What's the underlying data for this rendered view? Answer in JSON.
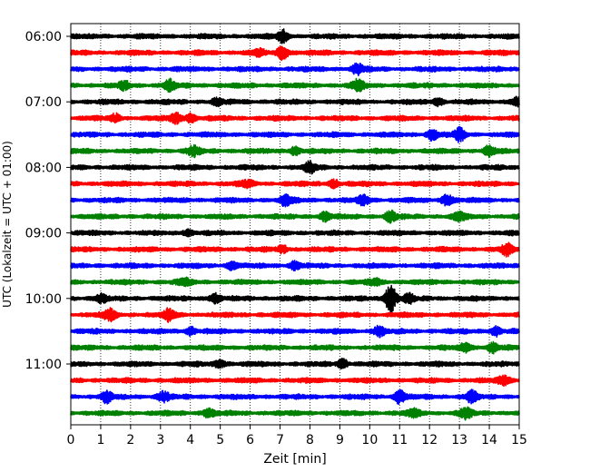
{
  "chart_data": {
    "type": "line",
    "title": "",
    "xlabel": "Zeit  [min]",
    "ylabel": "UTC (Lokalzeit = UTC + 01:00)",
    "xlim": [
      0,
      15
    ],
    "x_ticks": [
      "0",
      "1",
      "2",
      "3",
      "4",
      "5",
      "6",
      "7",
      "8",
      "9",
      "10",
      "11",
      "12",
      "13",
      "14",
      "15"
    ],
    "y_ticks": [
      {
        "label": "06:00",
        "row": 0
      },
      {
        "label": "07:00",
        "row": 4
      },
      {
        "label": "08:00",
        "row": 8
      },
      {
        "label": "09:00",
        "row": 12
      },
      {
        "label": "10:00",
        "row": 16
      },
      {
        "label": "11:00",
        "row": 20
      }
    ],
    "grid": "vertical dotted",
    "colors": [
      "#000000",
      "#ff0000",
      "#0000ff",
      "#008000"
    ],
    "rows": [
      {
        "start": "06:00",
        "color": "#000000",
        "events": [
          {
            "t": 7.1,
            "amp": 0.9
          }
        ]
      },
      {
        "start": "06:15",
        "color": "#ff0000",
        "events": [
          {
            "t": 7.1,
            "amp": 1.1
          },
          {
            "t": 6.3,
            "amp": 0.5
          }
        ]
      },
      {
        "start": "06:30",
        "color": "#0000ff",
        "events": [
          {
            "t": 9.6,
            "amp": 0.8
          }
        ]
      },
      {
        "start": "06:45",
        "color": "#008000",
        "events": [
          {
            "t": 1.8,
            "amp": 0.6
          },
          {
            "t": 3.3,
            "amp": 0.8
          },
          {
            "t": 9.6,
            "amp": 0.9
          }
        ]
      },
      {
        "start": "07:00",
        "color": "#000000",
        "events": [
          {
            "t": 4.9,
            "amp": 0.5
          },
          {
            "t": 12.3,
            "amp": 0.6
          },
          {
            "t": 14.9,
            "amp": 0.7
          }
        ]
      },
      {
        "start": "07:15",
        "color": "#ff0000",
        "events": [
          {
            "t": 1.5,
            "amp": 0.6
          },
          {
            "t": 3.5,
            "amp": 0.8
          },
          {
            "t": 4.0,
            "amp": 0.7
          }
        ]
      },
      {
        "start": "07:30",
        "color": "#0000ff",
        "events": [
          {
            "t": 12.1,
            "amp": 0.8
          },
          {
            "t": 13.0,
            "amp": 1.0
          }
        ]
      },
      {
        "start": "07:45",
        "color": "#008000",
        "events": [
          {
            "t": 4.1,
            "amp": 0.8
          },
          {
            "t": 7.5,
            "amp": 0.6
          },
          {
            "t": 14.0,
            "amp": 0.8
          }
        ]
      },
      {
        "start": "08:00",
        "color": "#000000",
        "events": [
          {
            "t": 8.0,
            "amp": 0.8
          }
        ]
      },
      {
        "start": "08:15",
        "color": "#ff0000",
        "events": [
          {
            "t": 5.9,
            "amp": 0.5
          },
          {
            "t": 8.8,
            "amp": 0.6
          }
        ]
      },
      {
        "start": "08:30",
        "color": "#0000ff",
        "events": [
          {
            "t": 7.2,
            "amp": 0.9
          },
          {
            "t": 9.8,
            "amp": 0.7
          },
          {
            "t": 12.6,
            "amp": 0.9
          }
        ]
      },
      {
        "start": "08:45",
        "color": "#008000",
        "events": [
          {
            "t": 8.5,
            "amp": 0.7
          },
          {
            "t": 10.7,
            "amp": 0.8
          },
          {
            "t": 13.0,
            "amp": 0.6
          }
        ]
      },
      {
        "start": "09:00",
        "color": "#000000",
        "events": [
          {
            "t": 3.9,
            "amp": 0.4
          }
        ]
      },
      {
        "start": "09:15",
        "color": "#ff0000",
        "events": [
          {
            "t": 7.1,
            "amp": 0.5
          },
          {
            "t": 14.6,
            "amp": 0.9
          }
        ]
      },
      {
        "start": "09:30",
        "color": "#0000ff",
        "events": [
          {
            "t": 5.4,
            "amp": 0.6
          },
          {
            "t": 7.5,
            "amp": 0.6
          }
        ]
      },
      {
        "start": "09:45",
        "color": "#008000",
        "events": [
          {
            "t": 3.8,
            "amp": 0.5
          },
          {
            "t": 10.2,
            "amp": 0.5
          }
        ]
      },
      {
        "start": "10:00",
        "color": "#000000",
        "events": [
          {
            "t": 1.0,
            "amp": 0.6
          },
          {
            "t": 4.8,
            "amp": 0.7
          },
          {
            "t": 10.7,
            "amp": 2.4
          },
          {
            "t": 11.3,
            "amp": 0.6
          }
        ]
      },
      {
        "start": "10:15",
        "color": "#ff0000",
        "events": [
          {
            "t": 1.3,
            "amp": 0.9
          },
          {
            "t": 3.3,
            "amp": 0.9
          }
        ]
      },
      {
        "start": "10:30",
        "color": "#0000ff",
        "events": [
          {
            "t": 4.0,
            "amp": 0.6
          },
          {
            "t": 10.3,
            "amp": 0.8
          },
          {
            "t": 14.2,
            "amp": 0.7
          }
        ]
      },
      {
        "start": "10:45",
        "color": "#008000",
        "events": [
          {
            "t": 13.2,
            "amp": 0.7
          },
          {
            "t": 14.1,
            "amp": 0.7
          }
        ]
      },
      {
        "start": "11:00",
        "color": "#000000",
        "events": [
          {
            "t": 5.0,
            "amp": 0.6
          },
          {
            "t": 9.1,
            "amp": 0.7
          }
        ]
      },
      {
        "start": "11:15",
        "color": "#ff0000",
        "events": [
          {
            "t": 14.5,
            "amp": 0.7
          }
        ]
      },
      {
        "start": "11:30",
        "color": "#0000ff",
        "events": [
          {
            "t": 1.2,
            "amp": 0.9
          },
          {
            "t": 3.1,
            "amp": 0.8
          },
          {
            "t": 11.0,
            "amp": 1.0
          },
          {
            "t": 13.4,
            "amp": 0.9
          }
        ]
      },
      {
        "start": "11:45",
        "color": "#008000",
        "events": [
          {
            "t": 4.6,
            "amp": 0.7
          },
          {
            "t": 11.5,
            "amp": 0.6
          },
          {
            "t": 13.2,
            "amp": 0.8
          }
        ]
      }
    ]
  }
}
